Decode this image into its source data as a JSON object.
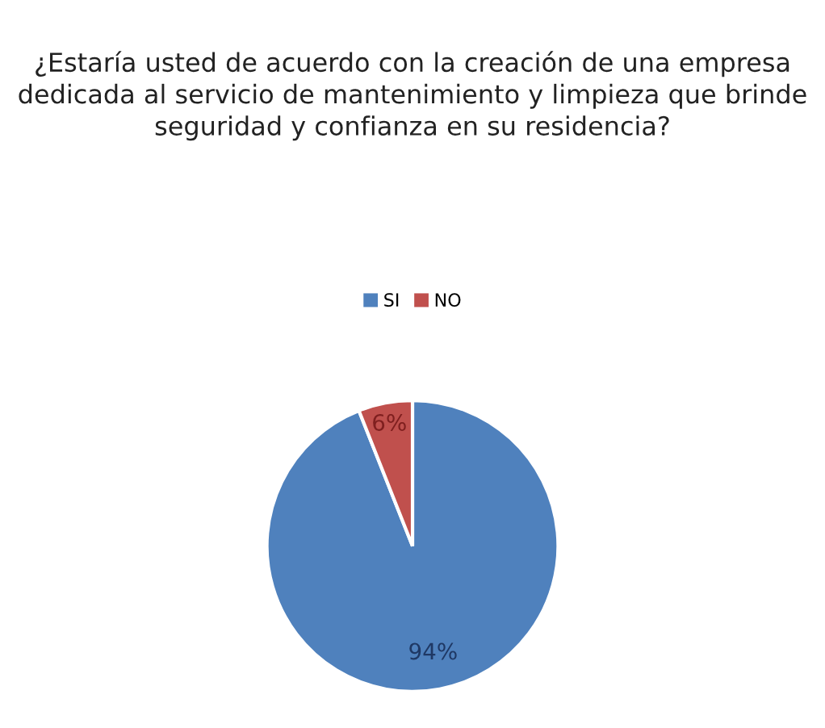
{
  "chart_data": {
    "type": "pie",
    "title": "¿Estaría usted de acuerdo con la creación de una empresa dedicada al servicio de mantenimiento y limpieza que brinde seguridad y confianza en su residencia?",
    "categories": [
      "SI",
      "NO"
    ],
    "values": [
      94,
      6
    ],
    "colors": [
      "#4f81bd",
      "#c0504d"
    ],
    "value_labels": [
      "94%",
      "6%"
    ],
    "legend": "top"
  }
}
